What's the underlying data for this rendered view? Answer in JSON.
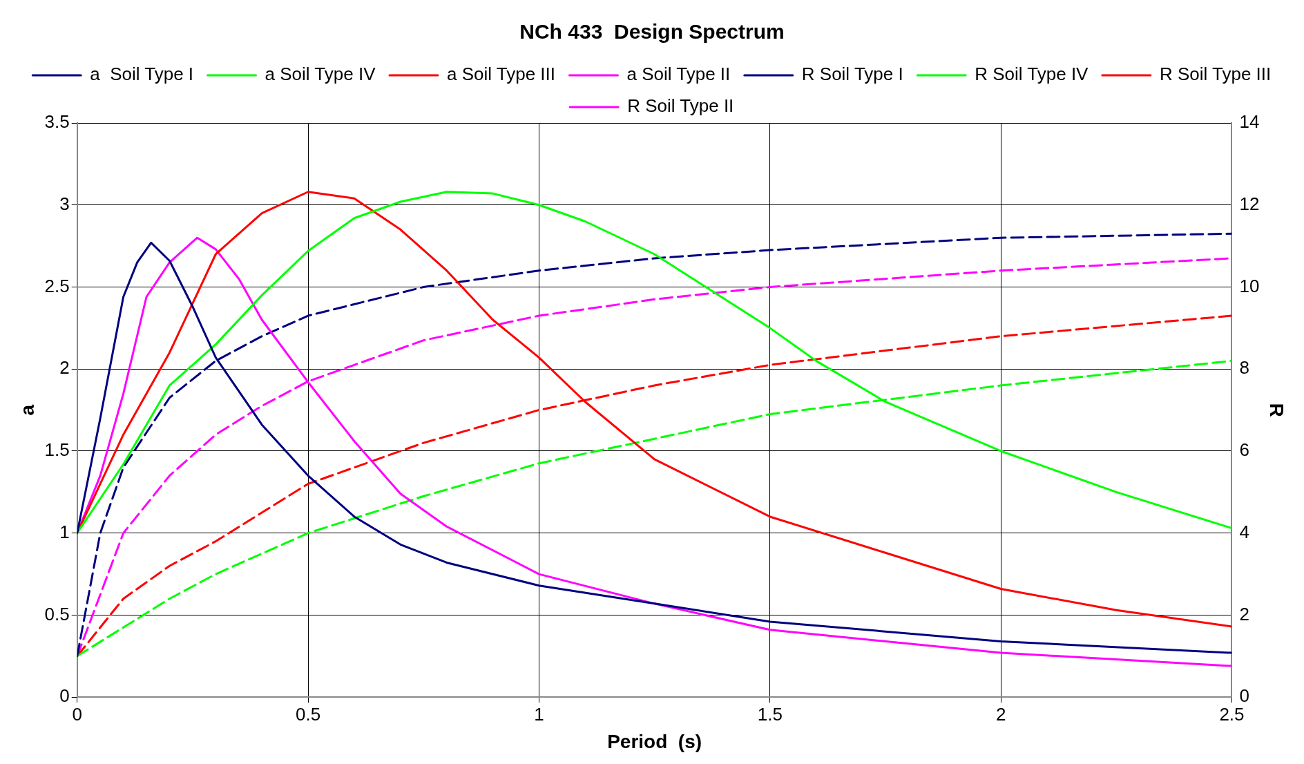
{
  "chart_data": {
    "type": "line",
    "title": "NCh 433  Design Spectrum",
    "xlabel": "Period  (s)",
    "ylabel": "a",
    "y2label": "R",
    "xlim": [
      0,
      2.5
    ],
    "xticks": [
      0,
      0.5,
      1,
      1.5,
      2,
      2.5
    ],
    "ylim": [
      0,
      3.5
    ],
    "yticks": [
      0,
      0.5,
      1,
      1.5,
      2,
      2.5,
      3,
      3.5
    ],
    "y2lim": [
      0,
      14
    ],
    "y2ticks": [
      0,
      2,
      4,
      6,
      8,
      10,
      12,
      14
    ],
    "grid": true,
    "legend": "top",
    "marker": "none",
    "series": [
      {
        "name": "a  Soil Type I",
        "color": "#000080",
        "line_style": "solid",
        "x": [
          0,
          0.05,
          0.1,
          0.13,
          0.16,
          0.2,
          0.25,
          0.3,
          0.4,
          0.5,
          0.6,
          0.7,
          0.8,
          1,
          1.25,
          1.5,
          2,
          2.5
        ],
        "values": [
          1,
          1.7,
          2.44,
          2.65,
          2.77,
          2.66,
          2.38,
          2.07,
          1.66,
          1.35,
          1.1,
          0.93,
          0.82,
          0.68,
          0.57,
          0.46,
          0.34,
          0.27
        ]
      },
      {
        "name": "a Soil Type IV",
        "color": "#00ff00",
        "line_style": "solid",
        "x": [
          0,
          0.1,
          0.2,
          0.3,
          0.4,
          0.5,
          0.6,
          0.7,
          0.8,
          0.9,
          1,
          1.1,
          1.25,
          1.5,
          1.6,
          1.75,
          2,
          2.25,
          2.5
        ],
        "values": [
          1,
          1.42,
          1.9,
          2.15,
          2.45,
          2.72,
          2.92,
          3.02,
          3.08,
          3.07,
          3,
          2.9,
          2.7,
          2.25,
          2.05,
          1.8,
          1.5,
          1.25,
          1.03
        ]
      },
      {
        "name": "a Soil Type III",
        "color": "#ff0000",
        "line_style": "solid",
        "x": [
          0,
          0.1,
          0.2,
          0.3,
          0.4,
          0.5,
          0.6,
          0.7,
          0.8,
          0.9,
          1,
          1.1,
          1.25,
          1.5,
          1.75,
          2,
          2.25,
          2.5
        ],
        "values": [
          1,
          1.6,
          2.1,
          2.7,
          2.95,
          3.08,
          3.04,
          2.85,
          2.6,
          2.3,
          2.07,
          1.8,
          1.45,
          1.1,
          0.88,
          0.66,
          0.53,
          0.43
        ]
      },
      {
        "name": "a Soil Type II",
        "color": "#ff00ff",
        "line_style": "solid",
        "x": [
          0,
          0.05,
          0.1,
          0.15,
          0.2,
          0.26,
          0.3,
          0.35,
          0.4,
          0.5,
          0.6,
          0.7,
          0.8,
          1,
          1.25,
          1.5,
          2,
          2.5
        ],
        "values": [
          1,
          1.35,
          1.85,
          2.44,
          2.65,
          2.8,
          2.73,
          2.55,
          2.3,
          1.92,
          1.56,
          1.24,
          1.04,
          0.75,
          0.57,
          0.41,
          0.27,
          0.19
        ]
      },
      {
        "name": "R Soil Type I",
        "color": "#000080",
        "line_style": "dashed",
        "axis": "y2",
        "x": [
          0,
          0.05,
          0.1,
          0.2,
          0.3,
          0.4,
          0.5,
          0.75,
          1,
          1.25,
          1.5,
          2,
          2.5
        ],
        "values": [
          1,
          4,
          5.6,
          7.3,
          8.2,
          8.8,
          9.3,
          10,
          10.4,
          10.7,
          10.9,
          11.2,
          11.3
        ]
      },
      {
        "name": "R Soil Type IV",
        "color": "#00ff00",
        "line_style": "dashed",
        "axis": "y2",
        "x": [
          0,
          0.1,
          0.2,
          0.3,
          0.4,
          0.5,
          0.75,
          1,
          1.25,
          1.5,
          2,
          2.5
        ],
        "values": [
          1,
          1.7,
          2.4,
          3,
          3.5,
          4,
          4.9,
          5.7,
          6.3,
          6.9,
          7.6,
          8.2
        ]
      },
      {
        "name": "R Soil Type III",
        "color": "#ff0000",
        "line_style": "dashed",
        "axis": "y2",
        "x": [
          0,
          0.1,
          0.2,
          0.3,
          0.4,
          0.5,
          0.75,
          1,
          1.25,
          1.5,
          2,
          2.5
        ],
        "values": [
          1,
          2.4,
          3.2,
          3.8,
          4.5,
          5.2,
          6.2,
          7,
          7.6,
          8.1,
          8.8,
          9.3
        ]
      },
      {
        "name": "R Soil Type II",
        "color": "#ff00ff",
        "line_style": "dashed",
        "axis": "y2",
        "x": [
          0,
          0.1,
          0.2,
          0.3,
          0.4,
          0.5,
          0.75,
          1,
          1.25,
          1.5,
          2,
          2.5
        ],
        "values": [
          1,
          4,
          5.4,
          6.4,
          7.1,
          7.7,
          8.7,
          9.3,
          9.7,
          10,
          10.4,
          10.7
        ]
      }
    ]
  }
}
